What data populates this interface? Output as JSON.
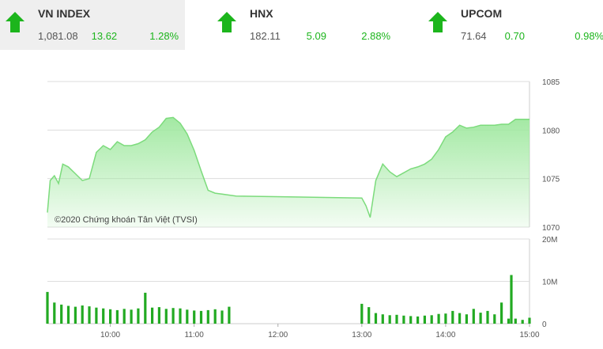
{
  "tickers": [
    {
      "name": "VN INDEX",
      "value": "1,081.08",
      "change": "13.62",
      "percent": "1.28%",
      "active": true
    },
    {
      "name": "HNX",
      "value": "182.11",
      "change": "5.09",
      "percent": "2.88%",
      "active": false
    },
    {
      "name": "UPCOM",
      "value": "71.64",
      "change": "0.70",
      "percent": "0.98%",
      "active": false
    }
  ],
  "colors": {
    "up": "#1cb51c",
    "area_fill": "#9ee89e",
    "area_line": "#7cdb7c",
    "volume": "#22aa22"
  },
  "watermark": "©2020 Chứng khoán Tân Việt (TVSI)",
  "chart_data": [
    {
      "type": "area",
      "title": "",
      "xlabel": "",
      "ylabel": "",
      "ylim": [
        1070,
        1085
      ],
      "yticks": [
        "1085",
        "1080",
        "1075",
        "1070"
      ],
      "grid": true,
      "x": [
        "09:15",
        "09:17",
        "09:20",
        "09:23",
        "09:26",
        "09:30",
        "09:35",
        "09:40",
        "09:45",
        "09:50",
        "09:55",
        "10:00",
        "10:05",
        "10:10",
        "10:15",
        "10:20",
        "10:25",
        "10:30",
        "10:35",
        "10:40",
        "10:45",
        "10:50",
        "10:55",
        "11:00",
        "11:05",
        "11:10",
        "11:15",
        "11:20",
        "11:25",
        "11:30",
        "13:00",
        "13:03",
        "13:06",
        "13:10",
        "13:15",
        "13:20",
        "13:25",
        "13:30",
        "13:35",
        "13:40",
        "13:45",
        "13:50",
        "13:55",
        "14:00",
        "14:05",
        "14:10",
        "14:15",
        "14:20",
        "14:25",
        "14:30",
        "14:35",
        "14:40",
        "14:45",
        "14:50",
        "14:55",
        "15:00"
      ],
      "series": [
        {
          "values": [
            1071.5,
            1074.8,
            1075.3,
            1074.5,
            1076.5,
            1076.2,
            1075.5,
            1074.8,
            1075.0,
            1077.7,
            1078.4,
            1078.0,
            1078.8,
            1078.4,
            1078.4,
            1078.6,
            1079.0,
            1079.8,
            1080.3,
            1081.2,
            1081.3,
            1080.7,
            1079.6,
            1077.9,
            1075.8,
            1073.8,
            1073.5,
            1073.4,
            1073.3,
            1073.2,
            1073.0,
            1072.2,
            1071.0,
            1074.8,
            1076.5,
            1075.7,
            1075.2,
            1075.6,
            1076.0,
            1076.2,
            1076.5,
            1077.0,
            1078.0,
            1079.3,
            1079.8,
            1080.5,
            1080.2,
            1080.3,
            1080.5,
            1080.5,
            1080.5,
            1080.6,
            1080.6,
            1081.1,
            1081.1,
            1081.1
          ]
        }
      ]
    },
    {
      "type": "bar",
      "title": "",
      "xlabel": "",
      "ylabel": "",
      "ylim": [
        0,
        20
      ],
      "yticks": [
        "20M",
        "10M",
        "0"
      ],
      "xticks": [
        "10:00",
        "11:00",
        "12:00",
        "13:00",
        "14:00",
        "15:00"
      ],
      "grid": true,
      "x": [
        "09:15",
        "09:20",
        "09:25",
        "09:30",
        "09:35",
        "09:40",
        "09:45",
        "09:50",
        "09:55",
        "10:00",
        "10:05",
        "10:10",
        "10:15",
        "10:20",
        "10:25",
        "10:30",
        "10:35",
        "10:40",
        "10:45",
        "10:50",
        "10:55",
        "11:00",
        "11:05",
        "11:10",
        "11:15",
        "11:20",
        "11:25",
        "13:00",
        "13:05",
        "13:10",
        "13:15",
        "13:20",
        "13:25",
        "13:30",
        "13:35",
        "13:40",
        "13:45",
        "13:50",
        "13:55",
        "14:00",
        "14:05",
        "14:10",
        "14:15",
        "14:20",
        "14:25",
        "14:30",
        "14:35",
        "14:40",
        "14:45",
        "14:47",
        "14:50",
        "14:55",
        "15:00"
      ],
      "series": [
        {
          "name": "",
          "values": [
            7.5,
            5.0,
            4.5,
            4.2,
            4.0,
            4.3,
            4.1,
            3.8,
            3.6,
            3.4,
            3.2,
            3.5,
            3.3,
            3.6,
            7.3,
            3.8,
            3.9,
            3.5,
            3.7,
            3.6,
            3.3,
            3.1,
            3.0,
            3.2,
            3.4,
            3.1,
            4.0,
            4.7,
            3.9,
            2.5,
            2.2,
            2.0,
            2.1,
            1.9,
            1.8,
            1.7,
            1.9,
            2.0,
            2.3,
            2.4,
            3.0,
            2.5,
            2.2,
            3.5,
            2.6,
            3.0,
            2.2,
            5.0,
            1.2,
            11.5,
            1.2,
            0.9,
            1.4
          ]
        }
      ]
    }
  ]
}
